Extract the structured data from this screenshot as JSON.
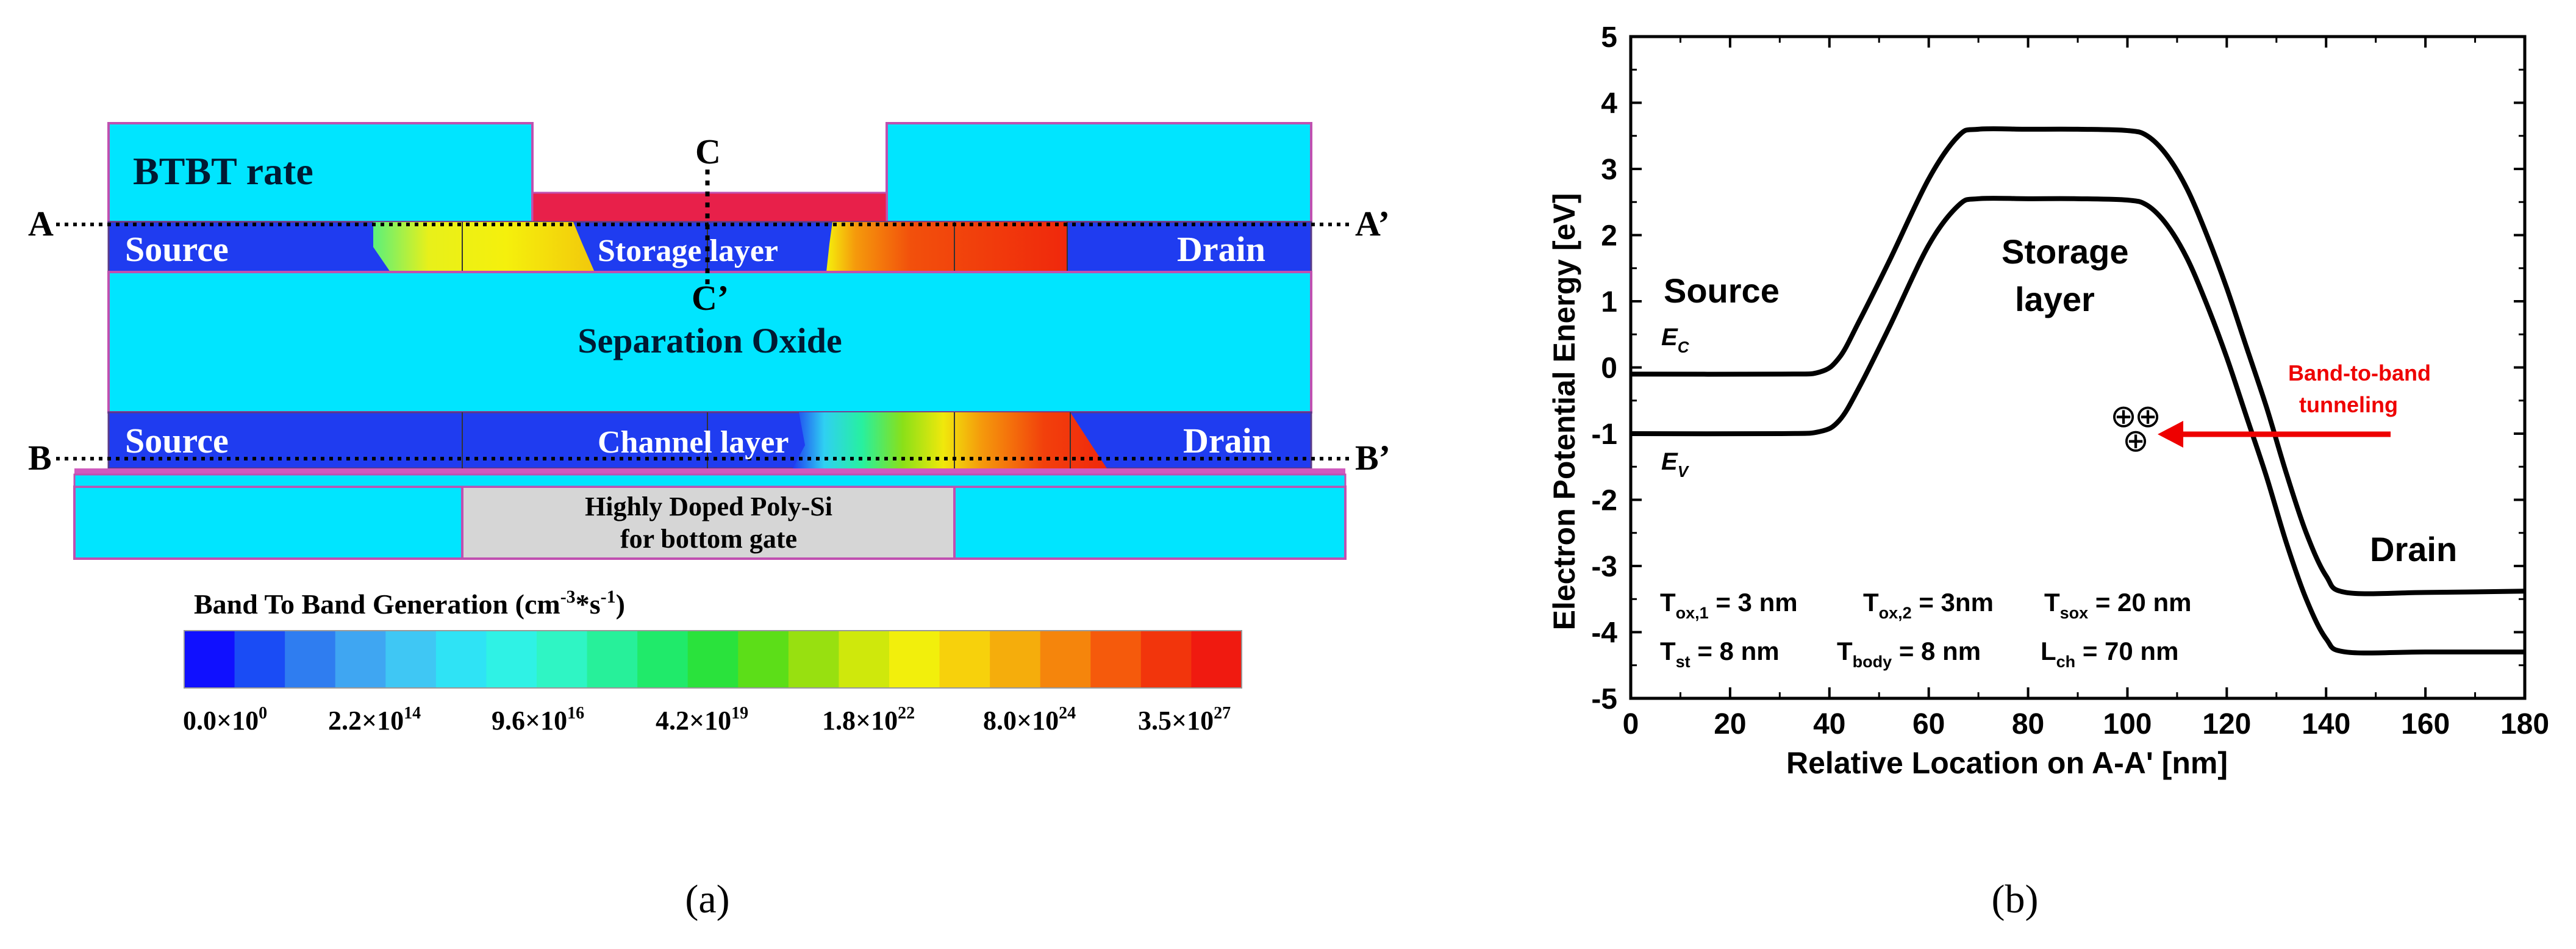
{
  "panel_a": {
    "caption": "(a)",
    "title_label": "BTBT rate",
    "point_labels": {
      "A": "A",
      "A_prime": "A’",
      "B": "B",
      "B_prime": "B’",
      "C": "C",
      "C_prime": "C’"
    },
    "region_labels": {
      "source_top": "Source",
      "storage_layer": "Storage layer",
      "drain_top": "Drain",
      "separation_oxide": "Separation Oxide",
      "source_bottom": "Source",
      "channel_layer": "Channel layer",
      "drain_bottom": "Drain",
      "poly_si_line1": "Highly Doped Poly-Si",
      "poly_si_line2": "for bottom gate"
    },
    "colorbar": {
      "title_main": "Band To Band Generation (cm",
      "title_sup1": "-3",
      "title_mid": "*s",
      "title_sup2": "-1",
      "title_end": ")",
      "ticks": [
        {
          "mantissa": "0.0×10",
          "exp": "0"
        },
        {
          "mantissa": "2.2×10",
          "exp": "14"
        },
        {
          "mantissa": "9.6×10",
          "exp": "16"
        },
        {
          "mantissa": "4.2×10",
          "exp": "19"
        },
        {
          "mantissa": "1.8×10",
          "exp": "22"
        },
        {
          "mantissa": "8.0×10",
          "exp": "24"
        },
        {
          "mantissa": "3.5×10",
          "exp": "27"
        }
      ],
      "colors": [
        "#1010ff",
        "#1a4cf5",
        "#2f7df0",
        "#3fa6f2",
        "#3fc7f4",
        "#2fe3f5",
        "#2ff2e5",
        "#2ff5c4",
        "#27f09a",
        "#20ea6a",
        "#2ae23c",
        "#5cde18",
        "#98e010",
        "#cfe80c",
        "#f2ef0c",
        "#f7d10c",
        "#f5ad0c",
        "#f5850c",
        "#f55a0c",
        "#f2350c",
        "#f01a10"
      ]
    },
    "colors": {
      "cyan": "#00e5ff",
      "blue": "#1f3cf0",
      "gate_red": "#e8204a",
      "pink_line": "#d05abe",
      "poly_gray": "#d6d6d6"
    }
  },
  "panel_b": {
    "caption": "(b)",
    "annotations": {
      "source": "Source",
      "storage_line1": "Storage",
      "storage_line2": "layer",
      "drain": "Drain",
      "ec_main": "E",
      "ec_sub": "C",
      "ev_main": "E",
      "ev_sub": "V",
      "btbt_line1": "Band-to-band",
      "btbt_line2": "tunneling",
      "holes_symbol": "⊕"
    },
    "params": {
      "row1": [
        {
          "main": "T",
          "sub": "ox,1",
          "rest": " = 3 nm"
        },
        {
          "main": "T",
          "sub": "ox,2",
          "rest": " = 3nm"
        },
        {
          "main": "T",
          "sub": "sox",
          "rest": " = 20 nm"
        }
      ],
      "row2": [
        {
          "main": "T",
          "sub": "st",
          "rest": " = 8 nm"
        },
        {
          "main": "T",
          "sub": "body",
          "rest": " = 8 nm"
        },
        {
          "main": "L",
          "sub": "ch",
          "rest": " = 70 nm"
        }
      ]
    },
    "colors": {
      "arrow": "#ee0000",
      "curve": "#000000"
    }
  },
  "chart_data": {
    "type": "line",
    "title": "",
    "xlabel": "Relative Location on A-A' [nm]",
    "ylabel": "Electron Potential Energy [eV]",
    "xlim": [
      0,
      180
    ],
    "ylim": [
      -5,
      5
    ],
    "xticks": [
      0,
      20,
      40,
      60,
      80,
      100,
      120,
      140,
      160,
      180
    ],
    "yticks": [
      -5,
      -4,
      -3,
      -2,
      -1,
      0,
      1,
      2,
      3,
      4,
      5
    ],
    "series": [
      {
        "name": "Ec",
        "x": [
          0,
          30,
          38,
          42,
          46,
          52,
          60,
          66,
          70,
          80,
          90,
          100,
          104,
          108,
          112,
          116,
          120,
          124,
          128,
          132,
          136,
          140,
          144,
          160,
          180
        ],
        "y": [
          -0.1,
          -0.1,
          -0.07,
          0.15,
          0.7,
          1.6,
          2.85,
          3.5,
          3.6,
          3.6,
          3.6,
          3.58,
          3.5,
          3.2,
          2.7,
          2.0,
          1.2,
          0.3,
          -0.6,
          -1.6,
          -2.5,
          -3.15,
          -3.4,
          -3.4,
          -3.38
        ]
      },
      {
        "name": "Ev",
        "x": [
          0,
          30,
          38,
          42,
          46,
          52,
          60,
          66,
          70,
          80,
          90,
          100,
          104,
          108,
          112,
          116,
          120,
          124,
          128,
          132,
          136,
          140,
          144,
          160,
          180
        ],
        "y": [
          -1.0,
          -1.0,
          -0.97,
          -0.8,
          -0.3,
          0.6,
          1.85,
          2.45,
          2.55,
          2.55,
          2.55,
          2.53,
          2.45,
          2.15,
          1.65,
          0.95,
          0.15,
          -0.75,
          -1.65,
          -2.65,
          -3.5,
          -4.1,
          -4.3,
          -4.3,
          -4.3
        ]
      }
    ]
  }
}
